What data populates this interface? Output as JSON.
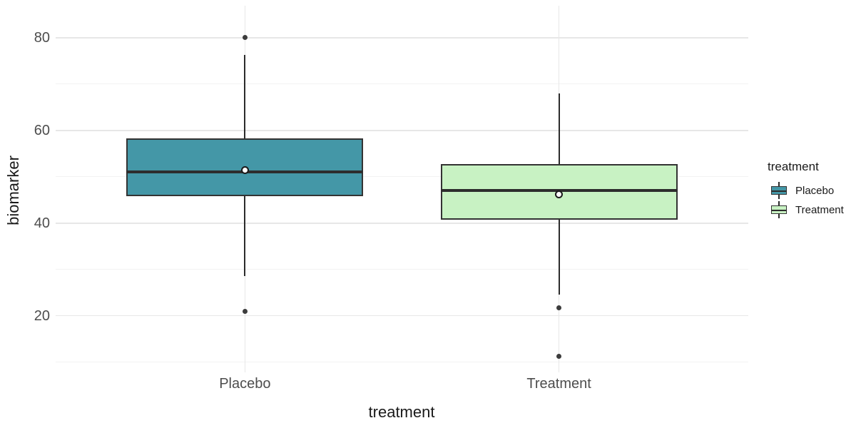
{
  "chart_data": {
    "type": "boxplot",
    "title": "",
    "xlabel": "treatment",
    "ylabel": "biomarker",
    "categories": [
      "Placebo",
      "Treatment"
    ],
    "y_axis": {
      "major_ticks": [
        80,
        60,
        40,
        20
      ],
      "minor_gridlines": [
        70,
        50,
        30,
        10
      ],
      "range_top": 86.9,
      "range_bottom": 7.8,
      "grid": "on",
      "axis_lines": "off"
    },
    "series": [
      {
        "name": "Placebo",
        "fill": "#4497a7",
        "whisker_low": 28.5,
        "q1": 45.8,
        "median": 51.0,
        "q3": 58.3,
        "whisker_high": 76.3,
        "mean": 51.5,
        "outliers": [
          21.0,
          80.0
        ]
      },
      {
        "name": "Treatment",
        "fill": "#c8f2c3",
        "whisker_low": 24.6,
        "q1": 40.8,
        "median": 47.1,
        "q3": 52.8,
        "whisker_high": 67.9,
        "mean": 46.2,
        "outliers": [
          11.3,
          21.8
        ]
      }
    ],
    "legend": {
      "title": "treatment",
      "position": "right",
      "entries": [
        {
          "label": "Placebo",
          "fill": "#4497a7"
        },
        {
          "label": "Treatment",
          "fill": "#c8f2c3"
        }
      ]
    },
    "colors": {
      "background": "#ffffff",
      "grid_major": "#e7e7e7",
      "grid_minor": "#f2f2f2",
      "box_border": "#333333",
      "median_line": "#2d2d2d",
      "whisker": "#2b2b2b",
      "outlier_point": "#3c3c3c",
      "mean_point_fill": "#ffffff",
      "mean_point_border": "#1a1a1a",
      "tick_text": "#4d4d4d",
      "axis_title_text": "#1a1a1a"
    }
  }
}
